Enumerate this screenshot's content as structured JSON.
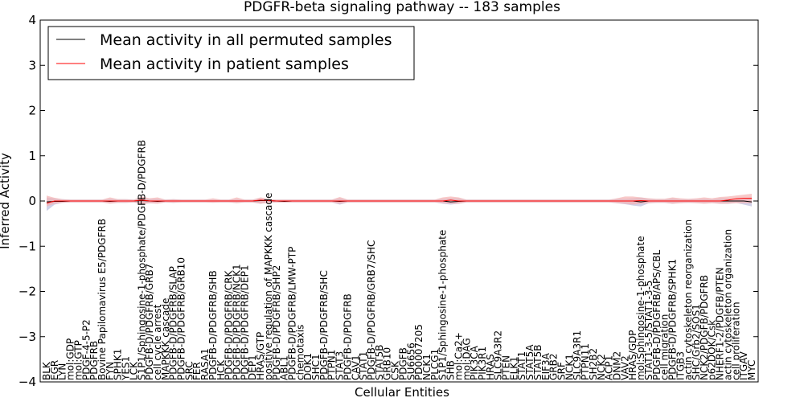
{
  "chart_data": {
    "type": "line",
    "title": "PDGFR-beta signaling pathway -- 183 samples",
    "xlabel": "Cellular Entities",
    "ylabel": "Inferred Activity",
    "ylim": [
      -4,
      4
    ],
    "yticks": [
      -4,
      -3,
      -2,
      -1,
      0,
      1,
      2,
      3,
      4
    ],
    "ytick_labels": [
      "−4",
      "−3",
      "−2",
      "−1",
      "0",
      "1",
      "2",
      "3",
      "4"
    ],
    "grid": false,
    "legend_position": "top-left",
    "categories": [
      "BLK",
      "EGR",
      "LYN",
      "mol:GDP",
      "mol:GTP",
      "PDGF-4-5-P2",
      "PDGFRB",
      "Bovine Papilomavirus E5/PDGFRB",
      "FYN",
      "SPHK1",
      "YES1",
      "LCK",
      "S1P1/Sphingosine-1-phosphate/PDGFB-D/PDGFRB",
      "PDGFB-D/PDGFRB/GRB7",
      "cell cycle arrest",
      "MAPKKK cascade",
      "PDGFB-D/PDGFRB/SLAP",
      "PDGFB-D/PDGFRB/GRB10",
      "SRC",
      "FER",
      "RASA1",
      "PDGFB-D/PDGFRB/SHB",
      "HCK",
      "PDGFB-D/PDGFRB/CRK",
      "PDGFB-D/PDGFRB/NCK1",
      "PDGFB-D/PDGFRB/DEP1",
      "DEP1",
      "HRAS/GTP",
      "positive regulation of MAPKKK cascade",
      "PDGFB-D/PDGFRB/SHP2",
      "ABL1",
      "PDGFB-D/PDGFRB/LMW-PTP",
      "chemotaxis",
      "DOK1",
      "SHC1",
      "PDGFB-D/PDGFRB/SHC",
      "PTPN1",
      "STAT3",
      "PDGFB-D/PDGFRB",
      "CAV1",
      "STAT1",
      "PDGFB-D/PDGFRB/GRB7/SHC",
      "STAT5B",
      "GRB10",
      "CSK",
      "PDGFB",
      "SU6656",
      "PD0007205",
      "NCK1",
      "PLCG1",
      "S1P1/Sphingosine-1-phosphate",
      "SHB",
      "mol:Ca2+",
      "mol:DAG",
      "PIK3CA",
      "PIK3R1",
      "HRAS",
      "SLC9A3R2",
      "PTEN",
      "ELK1",
      "STAT1",
      "STAT5A",
      "STAT5B",
      "EIF3A",
      "GRB2",
      "SRF",
      "NCK1",
      "SLC9A3R1",
      "PTPN11",
      "SH2B2",
      "NCK2",
      "ACP1",
      "DNM2",
      "VAV2",
      "HRAS/GDP",
      "mol:Sphingosine-1-phosphate",
      "STAT1-3-5/STAT1-3-5",
      "PDGFB-D/PDGFRB/APS/CBL",
      "cell migration",
      "PDGFB-D/PDGFRB/SPHK1",
      "ITGB3",
      "actin cytoskeleton reorganization",
      "SHC/Grb2/SOS1",
      "NCK2/PDGFB/PDGFRB",
      "p62DOK/Csk",
      "NHERF1-2/PDGFB/PTEN",
      "actin cytoskeleton organization",
      "cell proliferation",
      "ITGAV",
      "MYC"
    ],
    "series": [
      {
        "name": "Mean activity in all permuted samples",
        "color": "#000000",
        "band_color": "#c9c9e3",
        "values": [
          -0.02,
          -0.01,
          -0.01,
          0.0,
          0.0,
          0.0,
          0.0,
          0.0,
          -0.01,
          0.0,
          0.0,
          0.0,
          0.01,
          0.0,
          -0.01,
          0.0,
          0.0,
          0.0,
          0.0,
          0.0,
          0.0,
          0.0,
          0.0,
          0.0,
          0.0,
          0.0,
          0.0,
          0.01,
          0.01,
          0.0,
          -0.01,
          0.0,
          0.0,
          0.0,
          0.0,
          0.0,
          0.0,
          -0.01,
          0.0,
          0.0,
          0.0,
          0.0,
          0.0,
          0.0,
          0.0,
          0.0,
          0.0,
          0.0,
          0.0,
          0.0,
          0.0,
          -0.02,
          -0.01,
          0.0,
          0.0,
          0.0,
          0.0,
          0.0,
          0.0,
          0.0,
          0.0,
          0.0,
          0.0,
          0.0,
          0.0,
          0.0,
          0.0,
          0.0,
          0.0,
          0.0,
          0.0,
          0.0,
          0.0,
          0.0,
          0.0,
          -0.02,
          0.0,
          0.0,
          0.0,
          0.0,
          0.0,
          0.0,
          0.0,
          0.0,
          0.0,
          0.0,
          0.0,
          0.0,
          0.0,
          -0.02
        ],
        "band_lower": [
          -0.22,
          -0.08,
          -0.04,
          -0.03,
          -0.03,
          -0.03,
          -0.03,
          -0.03,
          -0.05,
          -0.04,
          -0.04,
          -0.03,
          -0.06,
          -0.05,
          -0.05,
          -0.03,
          -0.04,
          -0.03,
          -0.03,
          -0.03,
          -0.03,
          -0.03,
          -0.03,
          -0.03,
          -0.04,
          -0.03,
          -0.03,
          -0.06,
          -0.03,
          -0.03,
          -0.03,
          -0.03,
          -0.03,
          -0.03,
          -0.03,
          -0.03,
          -0.03,
          -0.08,
          -0.03,
          -0.03,
          -0.03,
          -0.03,
          -0.03,
          -0.03,
          -0.03,
          -0.03,
          -0.03,
          -0.03,
          -0.03,
          -0.03,
          -0.06,
          -0.08,
          -0.06,
          -0.03,
          -0.03,
          -0.03,
          -0.03,
          -0.03,
          -0.03,
          -0.03,
          -0.03,
          -0.03,
          -0.03,
          -0.03,
          -0.03,
          -0.03,
          -0.03,
          -0.03,
          -0.03,
          -0.03,
          -0.03,
          -0.03,
          -0.05,
          -0.07,
          -0.1,
          -0.12,
          -0.05,
          -0.04,
          -0.04,
          -0.06,
          -0.04,
          -0.04,
          -0.04,
          -0.05,
          -0.04,
          -0.06,
          -0.06,
          -0.04,
          -0.08,
          -0.12
        ],
        "band_upper": [
          0.08,
          0.06,
          0.04,
          0.03,
          0.03,
          0.03,
          0.03,
          0.03,
          0.05,
          0.04,
          0.04,
          0.03,
          0.06,
          0.05,
          0.05,
          0.03,
          0.04,
          0.03,
          0.03,
          0.03,
          0.03,
          0.03,
          0.03,
          0.03,
          0.04,
          0.03,
          0.03,
          0.06,
          0.03,
          0.03,
          0.03,
          0.03,
          0.03,
          0.03,
          0.03,
          0.03,
          0.03,
          0.06,
          0.03,
          0.03,
          0.03,
          0.03,
          0.03,
          0.03,
          0.03,
          0.03,
          0.03,
          0.03,
          0.03,
          0.03,
          0.05,
          0.06,
          0.06,
          0.03,
          0.03,
          0.03,
          0.03,
          0.03,
          0.03,
          0.03,
          0.03,
          0.03,
          0.03,
          0.03,
          0.03,
          0.03,
          0.03,
          0.03,
          0.03,
          0.03,
          0.03,
          0.03,
          0.05,
          0.05,
          0.06,
          0.08,
          0.05,
          0.04,
          0.04,
          0.06,
          0.04,
          0.04,
          0.04,
          0.05,
          0.04,
          0.06,
          0.06,
          0.04,
          0.06,
          0.08
        ]
      },
      {
        "name": "Mean activity in patient samples",
        "color": "#ff0000",
        "band_color": "#f5b2b2",
        "values": [
          -0.05,
          0.0,
          0.0,
          0.0,
          0.0,
          0.0,
          0.0,
          0.0,
          0.0,
          0.0,
          0.0,
          0.0,
          0.02,
          0.0,
          0.0,
          0.0,
          0.0,
          0.0,
          0.0,
          0.0,
          0.0,
          0.0,
          0.0,
          0.0,
          0.0,
          0.0,
          0.0,
          0.02,
          0.01,
          0.0,
          0.0,
          0.0,
          0.0,
          0.0,
          0.0,
          0.0,
          0.0,
          0.0,
          0.0,
          0.0,
          0.0,
          0.0,
          0.0,
          0.0,
          0.0,
          0.0,
          0.0,
          0.0,
          0.0,
          0.0,
          0.0,
          0.02,
          0.0,
          0.0,
          0.0,
          0.0,
          0.0,
          0.0,
          0.0,
          0.0,
          0.0,
          0.0,
          0.0,
          0.0,
          0.0,
          0.0,
          0.0,
          0.0,
          0.0,
          0.0,
          0.0,
          0.0,
          0.0,
          0.0,
          0.0,
          0.01,
          0.0,
          0.0,
          0.0,
          0.0,
          0.0,
          0.0,
          0.0,
          0.0,
          0.0,
          0.0,
          0.02,
          0.05,
          0.06,
          0.06
        ],
        "band_lower": [
          -0.12,
          -0.06,
          -0.04,
          -0.03,
          -0.03,
          -0.03,
          -0.03,
          -0.03,
          -0.06,
          -0.04,
          -0.04,
          -0.03,
          -0.07,
          -0.05,
          -0.06,
          -0.03,
          -0.04,
          -0.03,
          -0.03,
          -0.03,
          -0.03,
          -0.04,
          -0.03,
          -0.03,
          -0.05,
          -0.03,
          -0.03,
          -0.06,
          -0.04,
          -0.03,
          -0.03,
          -0.03,
          -0.03,
          -0.03,
          -0.03,
          -0.03,
          -0.03,
          -0.06,
          -0.03,
          -0.03,
          -0.03,
          -0.03,
          -0.03,
          -0.03,
          -0.03,
          -0.03,
          -0.03,
          -0.03,
          -0.03,
          -0.03,
          -0.05,
          -0.06,
          -0.06,
          -0.03,
          -0.03,
          -0.03,
          -0.03,
          -0.03,
          -0.03,
          -0.03,
          -0.03,
          -0.03,
          -0.03,
          -0.03,
          -0.03,
          -0.03,
          -0.03,
          -0.03,
          -0.03,
          -0.03,
          -0.03,
          -0.03,
          -0.05,
          -0.06,
          -0.08,
          -0.06,
          -0.05,
          -0.04,
          -0.04,
          -0.06,
          -0.05,
          -0.04,
          -0.05,
          -0.06,
          -0.05,
          -0.06,
          -0.06,
          -0.05,
          -0.05,
          -0.05
        ],
        "band_upper": [
          0.12,
          0.07,
          0.04,
          0.03,
          0.03,
          0.03,
          0.03,
          0.03,
          0.08,
          0.04,
          0.04,
          0.03,
          0.1,
          0.06,
          0.08,
          0.03,
          0.04,
          0.03,
          0.03,
          0.03,
          0.03,
          0.06,
          0.03,
          0.03,
          0.08,
          0.03,
          0.03,
          0.08,
          0.05,
          0.03,
          0.03,
          0.03,
          0.03,
          0.03,
          0.03,
          0.03,
          0.03,
          0.09,
          0.03,
          0.03,
          0.03,
          0.03,
          0.03,
          0.03,
          0.03,
          0.03,
          0.03,
          0.03,
          0.03,
          0.03,
          0.08,
          0.1,
          0.08,
          0.03,
          0.03,
          0.03,
          0.03,
          0.03,
          0.03,
          0.03,
          0.03,
          0.03,
          0.03,
          0.03,
          0.03,
          0.03,
          0.03,
          0.03,
          0.03,
          0.03,
          0.03,
          0.03,
          0.06,
          0.1,
          0.1,
          0.08,
          0.06,
          0.05,
          0.05,
          0.08,
          0.06,
          0.05,
          0.06,
          0.08,
          0.06,
          0.09,
          0.1,
          0.12,
          0.14,
          0.16
        ]
      }
    ]
  }
}
